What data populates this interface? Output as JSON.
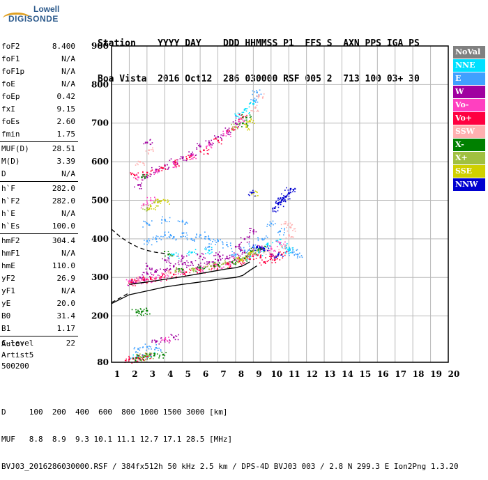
{
  "logo": {
    "line1": "Lowell",
    "line2": "DIGISONDE"
  },
  "header": {
    "line1": "Station    YYYY DAY    DDD HHMMSS P1  FFS S  AXN PPS IGA PS",
    "line2": "Boa Vista  2016 Oct12  286 030000 RSF 005 2  713 100 03+ 30"
  },
  "params_groups": [
    [
      {
        "k": "foF2",
        "v": "8.400"
      },
      {
        "k": "foF1",
        "v": "N/A"
      },
      {
        "k": "foF1p",
        "v": "N/A"
      },
      {
        "k": "foE",
        "v": "N/A"
      },
      {
        "k": "foEp",
        "v": "0.42"
      },
      {
        "k": "fxI",
        "v": "9.15"
      },
      {
        "k": "foEs",
        "v": "2.60"
      },
      {
        "k": "fmin",
        "v": "1.75"
      }
    ],
    [
      {
        "k": "MUF(D)",
        "v": "28.51"
      },
      {
        "k": "M(D)",
        "v": "3.39"
      },
      {
        "k": "D",
        "v": "N/A"
      }
    ],
    [
      {
        "k": "h`F",
        "v": "282.0"
      },
      {
        "k": "h`F2",
        "v": "282.0"
      },
      {
        "k": "h`E",
        "v": "N/A"
      },
      {
        "k": "h`Es",
        "v": "100.0"
      }
    ],
    [
      {
        "k": "hmF2",
        "v": "304.4"
      },
      {
        "k": "hmF1",
        "v": "N/A"
      },
      {
        "k": "hmE",
        "v": "110.0"
      },
      {
        "k": "yF2",
        "v": "26.9"
      },
      {
        "k": "yF1",
        "v": "N/A"
      },
      {
        "k": "yE",
        "v": "20.0"
      },
      {
        "k": "B0",
        "v": "31.4"
      },
      {
        "k": "B1",
        "v": "1.17"
      }
    ],
    [
      {
        "k": "C-level",
        "v": "22"
      }
    ]
  ],
  "autoscale": {
    "line1": "Auto:",
    "line2": "Artist5",
    "line3": "500200"
  },
  "legend": [
    {
      "label": "NoVal",
      "color": "#808080"
    },
    {
      "label": "NNE",
      "color": "#00e0ff"
    },
    {
      "label": "E",
      "color": "#40a0ff"
    },
    {
      "label": "W",
      "color": "#a000a0"
    },
    {
      "label": "Vo-",
      "color": "#ff40c0"
    },
    {
      "label": "Vo+",
      "color": "#ff0040"
    },
    {
      "label": "SSW",
      "color": "#ffb0b0"
    },
    {
      "label": "X-",
      "color": "#008000"
    },
    {
      "label": "X+",
      "color": "#a0c040"
    },
    {
      "label": "SSE",
      "color": "#d0d000"
    },
    {
      "label": "NNW",
      "color": "#0000d0"
    }
  ],
  "footer": {
    "line1": "D     100  200  400  600  800 1000 1500 3000 [km]",
    "line2": "MUF   8.8  8.9  9.3 10.1 11.1 12.7 17.1 28.5 [MHz]",
    "line3": "BVJ03_2016286030000.RSF / 384fx512h 50 kHz 2.5 km / DPS-4D BVJ03 003 / 2.8 N 299.3 E Ion2Png 1.3.20"
  },
  "chart_data": {
    "type": "scatter",
    "x_range": [
      1,
      20
    ],
    "y_range": [
      80,
      900
    ],
    "x_ticks": [
      1,
      2,
      3,
      4,
      5,
      6,
      7,
      8,
      9,
      10,
      11,
      12,
      13,
      14,
      15,
      16,
      17,
      18,
      19,
      20
    ],
    "y_ticks": [
      80,
      200,
      300,
      400,
      500,
      600,
      700,
      800,
      900
    ],
    "grid": true,
    "series": [
      {
        "name": "W",
        "color": "#a000a0",
        "points": [
          [
            2.2,
            288
          ],
          [
            2.6,
            300
          ],
          [
            3.0,
            310
          ],
          [
            3.5,
            315
          ],
          [
            4.0,
            320
          ],
          [
            4.5,
            330
          ],
          [
            5.0,
            335
          ],
          [
            5.5,
            340
          ],
          [
            6.0,
            330
          ],
          [
            6.5,
            340
          ],
          [
            7.0,
            345
          ],
          [
            7.5,
            350
          ],
          [
            8.0,
            360
          ],
          [
            8.5,
            365
          ],
          [
            9.0,
            370
          ],
          [
            9.5,
            375
          ],
          [
            10.0,
            360
          ],
          [
            3.0,
            330
          ],
          [
            4.0,
            345
          ],
          [
            5.0,
            350
          ],
          [
            6.0,
            355
          ],
          [
            7.0,
            360
          ],
          [
            8.0,
            380
          ],
          [
            8.5,
            400
          ],
          [
            9.0,
            420
          ],
          [
            2.5,
            540
          ],
          [
            3.0,
            560
          ],
          [
            3.5,
            580
          ],
          [
            4.0,
            590
          ],
          [
            4.5,
            600
          ],
          [
            5.0,
            610
          ],
          [
            5.5,
            620
          ],
          [
            6.0,
            640
          ],
          [
            6.5,
            650
          ],
          [
            7.0,
            665
          ],
          [
            7.5,
            680
          ],
          [
            8.0,
            700
          ],
          [
            3.5,
            135
          ],
          [
            4.0,
            140
          ],
          [
            4.5,
            145
          ],
          [
            3.0,
            650
          ]
        ]
      },
      {
        "name": "E",
        "color": "#40a0ff",
        "points": [
          [
            3.0,
            395
          ],
          [
            3.5,
            400
          ],
          [
            4.0,
            410
          ],
          [
            4.5,
            405
          ],
          [
            5.0,
            415
          ],
          [
            5.5,
            400
          ],
          [
            6.0,
            410
          ],
          [
            6.5,
            400
          ],
          [
            7.0,
            395
          ],
          [
            3.0,
            440
          ],
          [
            4.0,
            450
          ],
          [
            5.0,
            445
          ],
          [
            8.0,
            360
          ],
          [
            8.5,
            370
          ],
          [
            9.0,
            380
          ],
          [
            9.5,
            400
          ],
          [
            10.0,
            440
          ],
          [
            10.5,
            420
          ],
          [
            11.0,
            370
          ],
          [
            11.2,
            365
          ],
          [
            11.5,
            360
          ],
          [
            9.0,
            760
          ],
          [
            9.2,
            780
          ],
          [
            2.5,
            115
          ],
          [
            3.0,
            120
          ],
          [
            3.5,
            118
          ],
          [
            6.5,
            380
          ],
          [
            7.5,
            385
          ]
        ]
      },
      {
        "name": "NNE",
        "color": "#00e0ff",
        "points": [
          [
            2.2,
            92
          ],
          [
            2.8,
            98
          ],
          [
            3.2,
            100
          ],
          [
            8.8,
            355
          ],
          [
            9.3,
            365
          ],
          [
            9.8,
            385
          ],
          [
            10.3,
            395
          ],
          [
            10.8,
            380
          ],
          [
            11.0,
            372
          ],
          [
            8.0,
            720
          ],
          [
            8.5,
            735
          ],
          [
            9.0,
            750
          ],
          [
            4.5,
            360
          ],
          [
            5.5,
            365
          ],
          [
            6.5,
            370
          ]
        ]
      },
      {
        "name": "Vo-",
        "color": "#ff40c0",
        "points": [
          [
            2.0,
            290
          ],
          [
            2.5,
            293
          ],
          [
            3.0,
            296
          ],
          [
            3.5,
            300
          ],
          [
            4.0,
            304
          ],
          [
            5.0,
            312
          ],
          [
            6.0,
            320
          ],
          [
            7.0,
            330
          ],
          [
            7.5,
            335
          ],
          [
            8.0,
            345
          ],
          [
            9.0,
            360
          ],
          [
            10.0,
            375
          ],
          [
            10.5,
            390
          ],
          [
            2.5,
            560
          ],
          [
            3.5,
            575
          ],
          [
            4.5,
            595
          ],
          [
            5.5,
            615
          ],
          [
            6.5,
            645
          ],
          [
            7.5,
            675
          ],
          [
            8.2,
            710
          ],
          [
            2.8,
            490
          ],
          [
            3.2,
            500
          ],
          [
            4.0,
            140
          ]
        ]
      },
      {
        "name": "Vo+",
        "color": "#ff0040",
        "points": [
          [
            2.0,
            88
          ],
          [
            2.2,
            90
          ],
          [
            2.5,
            92
          ],
          [
            2.8,
            94
          ],
          [
            3.0,
            95
          ],
          [
            2.1,
            288
          ],
          [
            2.4,
            291
          ],
          [
            2.8,
            294
          ],
          [
            3.2,
            298
          ],
          [
            3.8,
            302
          ],
          [
            4.5,
            308
          ],
          [
            5.2,
            314
          ],
          [
            6.0,
            320
          ],
          [
            6.8,
            328
          ],
          [
            7.6,
            336
          ],
          [
            8.2,
            342
          ],
          [
            8.8,
            348
          ],
          [
            9.4,
            352
          ],
          [
            10.0,
            355
          ],
          [
            10.6,
            360
          ],
          [
            2.3,
            565
          ],
          [
            3.0,
            572
          ],
          [
            3.8,
            585
          ],
          [
            4.6,
            598
          ],
          [
            5.4,
            612
          ],
          [
            6.2,
            630
          ],
          [
            7.0,
            655
          ],
          [
            7.8,
            685
          ],
          [
            8.4,
            715
          ],
          [
            9.6,
            340
          ],
          [
            10.2,
            345
          ]
        ]
      },
      {
        "name": "SSW",
        "color": "#ffb0b0",
        "points": [
          [
            2.5,
            298
          ],
          [
            4.2,
            315
          ],
          [
            6.2,
            328
          ],
          [
            8.6,
            350
          ],
          [
            9.8,
            370
          ],
          [
            10.6,
            380
          ],
          [
            11.0,
            410
          ],
          [
            11.1,
            430
          ],
          [
            10.8,
            440
          ],
          [
            9.1,
            740
          ],
          [
            9.3,
            770
          ],
          [
            2.6,
            600
          ],
          [
            3.1,
            630
          ]
        ]
      },
      {
        "name": "X-",
        "color": "#008000",
        "points": [
          [
            2.4,
            92
          ],
          [
            2.9,
            96
          ],
          [
            3.4,
            98
          ],
          [
            3.9,
            100
          ],
          [
            2.4,
            210
          ],
          [
            2.7,
            212
          ],
          [
            3.0,
            214
          ],
          [
            5.0,
            320
          ],
          [
            6.0,
            325
          ],
          [
            7.0,
            333
          ],
          [
            7.8,
            340
          ],
          [
            8.5,
            350
          ],
          [
            8.9,
            368
          ],
          [
            9.4,
            375
          ],
          [
            8.4,
            700
          ],
          [
            8.6,
            715
          ],
          [
            4.2,
            360
          ],
          [
            2.7,
            560
          ]
        ]
      },
      {
        "name": "X+",
        "color": "#a0c040",
        "points": [
          [
            2.6,
            94
          ],
          [
            3.1,
            97
          ],
          [
            4.6,
            318
          ],
          [
            5.6,
            323
          ],
          [
            6.6,
            330
          ],
          [
            7.3,
            336
          ],
          [
            8.2,
            346
          ],
          [
            8.7,
            360
          ],
          [
            9.2,
            370
          ],
          [
            3.0,
            480
          ],
          [
            3.4,
            495
          ],
          [
            8.0,
            690
          ]
        ]
      },
      {
        "name": "SSE",
        "color": "#d0d000",
        "points": [
          [
            3.2,
            485
          ],
          [
            3.6,
            495
          ],
          [
            4.0,
            500
          ],
          [
            8.3,
            345
          ],
          [
            8.8,
            360
          ],
          [
            9.0,
            520
          ],
          [
            8.6,
            690
          ],
          [
            8.8,
            705
          ]
        ]
      },
      {
        "name": "NNW",
        "color": "#0000d0",
        "points": [
          [
            10.2,
            480
          ],
          [
            10.4,
            490
          ],
          [
            10.6,
            500
          ],
          [
            10.8,
            510
          ],
          [
            11.0,
            520
          ],
          [
            11.1,
            530
          ],
          [
            10.7,
            505
          ],
          [
            10.5,
            495
          ],
          [
            9.2,
            380
          ],
          [
            9.6,
            375
          ],
          [
            10.4,
            360
          ],
          [
            8.9,
            520
          ]
        ]
      }
    ],
    "profile_lines": [
      {
        "style": "solid",
        "points": [
          [
            1.0,
            232
          ],
          [
            2.0,
            255
          ],
          [
            3.0,
            265
          ],
          [
            4.0,
            275
          ],
          [
            5.0,
            282
          ],
          [
            6.0,
            288
          ],
          [
            7.0,
            295
          ],
          [
            8.0,
            300
          ],
          [
            8.4,
            305
          ],
          [
            8.8,
            318
          ],
          [
            9.2,
            330
          ]
        ]
      },
      {
        "style": "solid",
        "points": [
          [
            2.0,
            282
          ],
          [
            3.0,
            288
          ],
          [
            4.0,
            295
          ],
          [
            5.0,
            302
          ],
          [
            6.0,
            310
          ],
          [
            7.0,
            318
          ],
          [
            7.5,
            322
          ],
          [
            8.0,
            325
          ],
          [
            8.4,
            330
          ],
          [
            8.8,
            340
          ]
        ]
      },
      {
        "style": "dashed",
        "points": [
          [
            1.0,
            425
          ],
          [
            1.5,
            405
          ],
          [
            2.0,
            390
          ],
          [
            2.5,
            378
          ],
          [
            3.0,
            370
          ],
          [
            3.5,
            365
          ],
          [
            4.0,
            362
          ]
        ]
      },
      {
        "style": "dashed",
        "points": [
          [
            1.0,
            235
          ],
          [
            1.3,
            242
          ],
          [
            1.6,
            250
          ],
          [
            2.0,
            260
          ]
        ]
      }
    ]
  }
}
